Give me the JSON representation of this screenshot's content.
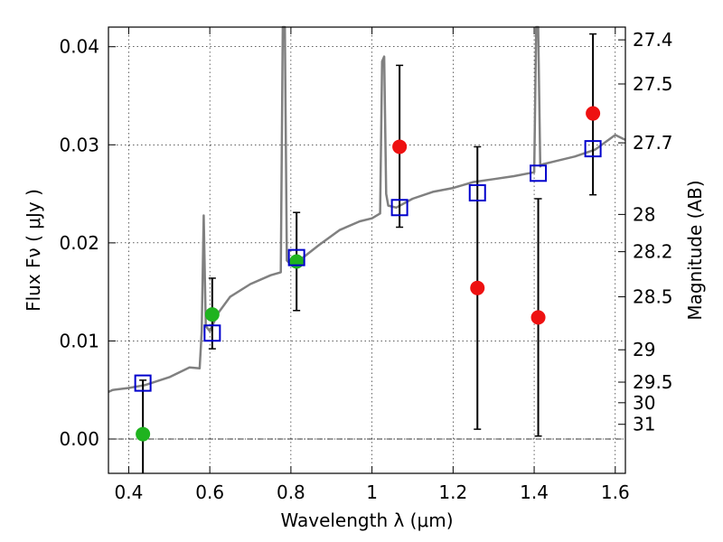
{
  "chart_data": {
    "type": "scatter",
    "xlabel": "Wavelength  λ (μm)",
    "ylabel": "Flux  Fν  ( μJy )",
    "y2label": "Magnitude (AB)",
    "xlim": [
      0.35,
      1.625
    ],
    "ylim": [
      -0.0035,
      0.042
    ],
    "grid": true,
    "x_ticks": [
      0.4,
      0.6,
      0.8,
      1.0,
      1.2,
      1.4,
      1.6
    ],
    "x_tick_labels": [
      "0.4",
      "0.6",
      "0.8",
      "1",
      "1.2",
      "1.4",
      "1.6"
    ],
    "y_ticks": [
      0.0,
      0.01,
      0.02,
      0.03,
      0.04
    ],
    "y_tick_labels": [
      "0.00",
      "0.01",
      "0.02",
      "0.03",
      "0.04"
    ],
    "mag_ticks": [
      {
        "label": "27.4",
        "flux": 0.0407
      },
      {
        "label": "27.5",
        "flux": 0.0362
      },
      {
        "label": "27.7",
        "flux": 0.0302
      },
      {
        "label": "28",
        "flux": 0.0229
      },
      {
        "label": "28.2",
        "flux": 0.0191
      },
      {
        "label": "28.5",
        "flux": 0.0145
      },
      {
        "label": "29",
        "flux": 0.0091
      },
      {
        "label": "29.5",
        "flux": 0.0058
      },
      {
        "label": "30",
        "flux": 0.0037
      },
      {
        "label": "31",
        "flux": 0.0015
      }
    ],
    "colors": {
      "spectrum": "#808080",
      "model_box": "#0000cc",
      "detection": "#1fb31f",
      "upper_limit": "#ee1111",
      "error_bar": "#000000"
    },
    "model_spectrum": {
      "x": [
        0.35,
        0.36,
        0.4,
        0.44,
        0.5,
        0.55,
        0.575,
        0.58,
        0.585,
        0.59,
        0.6,
        0.62,
        0.65,
        0.7,
        0.75,
        0.775,
        0.78,
        0.785,
        0.79,
        0.8,
        0.83,
        0.87,
        0.92,
        0.97,
        1.0,
        1.02,
        1.025,
        1.03,
        1.035,
        1.04,
        1.06,
        1.1,
        1.15,
        1.2,
        1.25,
        1.3,
        1.35,
        1.4,
        1.405,
        1.41,
        1.415,
        1.42,
        1.45,
        1.5,
        1.55,
        1.6,
        1.625
      ],
      "y": [
        0.0048,
        0.005,
        0.0052,
        0.0055,
        0.0063,
        0.0073,
        0.0072,
        0.011,
        0.0228,
        0.0115,
        0.011,
        0.0128,
        0.0145,
        0.0158,
        0.0167,
        0.017,
        0.043,
        0.043,
        0.0182,
        0.0178,
        0.0185,
        0.0198,
        0.0213,
        0.0222,
        0.0225,
        0.023,
        0.0385,
        0.039,
        0.025,
        0.0238,
        0.0236,
        0.0245,
        0.0252,
        0.0256,
        0.0262,
        0.0265,
        0.0268,
        0.0272,
        0.043,
        0.043,
        0.0278,
        0.028,
        0.0283,
        0.0288,
        0.0295,
        0.031,
        0.0305
      ]
    },
    "model_photometry": {
      "x": [
        0.435,
        0.606,
        0.814,
        1.068,
        1.26,
        1.41,
        1.545
      ],
      "y": [
        0.0057,
        0.0108,
        0.0185,
        0.0236,
        0.0251,
        0.0271,
        0.0296
      ]
    },
    "observed_detections": {
      "x": [
        0.435,
        0.606,
        0.814
      ],
      "y": [
        0.0005,
        0.0127,
        0.0181
      ],
      "yerr_low": [
        0.006,
        0.0035,
        0.005
      ],
      "yerr_high": [
        0.0055,
        0.0037,
        0.005
      ]
    },
    "observed_nondetections": {
      "x": [
        1.068,
        1.26,
        1.41,
        1.545
      ],
      "y": [
        0.0298,
        0.0154,
        0.0124,
        0.0332
      ],
      "yerr_low": [
        0.0082,
        0.0144,
        0.0121,
        0.0083
      ],
      "yerr_high": [
        0.0083,
        0.0144,
        0.0121,
        0.0081
      ]
    }
  }
}
